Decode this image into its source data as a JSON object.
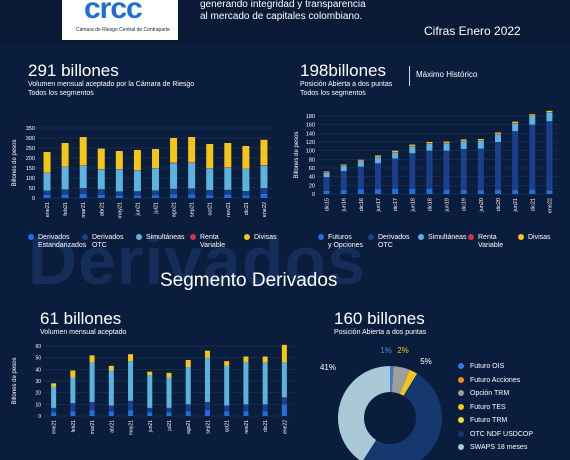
{
  "header": {
    "logo": "crcc",
    "logo_subtitle": "Cámara de Riesgo Central de Contraparte",
    "tagline_line1": "generando integridad y transparencia",
    "tagline_line2": "al mercado de capitales colombiano.",
    "period": "Cifras Enero 2022"
  },
  "colors": {
    "derivados_estandarizados": "#1f6fe0",
    "derivados_otc": "#1b3f8c",
    "simultaneas": "#5cb4dd",
    "renta_variable": "#d8304a",
    "divisas": "#f5c518",
    "futuros_opciones": "#1f6fe0",
    "pie_light": "#a9c8d8",
    "pie_dark": "#15386f"
  },
  "volumen": {
    "headline": "291 billones",
    "subtitle1": "Volumen mensual aceptado por la Cámara de Riesgo",
    "subtitle2": "Todos los segmentos",
    "legend": [
      "Derivados\nEstandarizados",
      "Derivados\nOTC",
      "Simultáneas",
      "Renta\nVariable",
      "Divisas"
    ]
  },
  "posicion": {
    "headline": "198billones",
    "subtitle1": "Posición Abierta a dos puntas",
    "subtitle2": "Todos los segmentos",
    "badge": "Máximo Histórico",
    "legend": [
      "Futuros\ny Opciones",
      "Derivados\nOTC",
      "Simultáneas",
      "Renta\nVariable",
      "Divisas"
    ]
  },
  "segmento": {
    "title": "Segmento Derivados",
    "watermark": "Derivados"
  },
  "deriv_volumen": {
    "headline": "61 billones",
    "subtitle": "Volumen mensual aceptado"
  },
  "deriv_posicion": {
    "headline": "160 billones",
    "subtitle": "Posición Abierta a dos puntas",
    "labels": [
      "1%",
      "2%",
      "5%",
      "41%"
    ],
    "legend": [
      "Futuro OIS",
      "Futuro Acciones",
      "Opción TRM",
      "Futuro TES",
      "Futuro TRM",
      "OTC NDF USDCOP",
      "SWAPS 18 meses"
    ],
    "legend_colors": [
      "#2f7de0",
      "#f58a1f",
      "#9e9e9e",
      "#f5c518",
      "#f5d83a",
      "#15386f",
      "#a9c8d8"
    ]
  },
  "chart_data": [
    {
      "type": "bar",
      "ylabel": "Billones de pesos",
      "ylim": [
        0,
        350
      ],
      "yticks": [
        0,
        50,
        100,
        150,
        200,
        250,
        300,
        350
      ],
      "categories": [
        "ene21",
        "feb21",
        "mar21",
        "abr21",
        "may21",
        "jun21",
        "jul21",
        "ago21",
        "sep21",
        "oct21",
        "nov21",
        "dic21",
        "ene22"
      ],
      "series": [
        {
          "name": "Derivados Estandarizados",
          "values": [
            15,
            17,
            20,
            16,
            13,
            12,
            14,
            18,
            18,
            14,
            17,
            13,
            20
          ]
        },
        {
          "name": "Derivados OTC",
          "values": [
            22,
            26,
            30,
            28,
            20,
            22,
            24,
            28,
            30,
            26,
            24,
            22,
            30
          ]
        },
        {
          "name": "Simultáneas",
          "values": [
            88,
            112,
            110,
            98,
            110,
            104,
            110,
            128,
            127,
            108,
            110,
            110,
            112
          ]
        },
        {
          "name": "Renta Variable",
          "values": [
            2,
            2,
            3,
            2,
            2,
            2,
            2,
            3,
            3,
            2,
            2,
            2,
            3
          ]
        },
        {
          "name": "Divisas",
          "values": [
            103,
            118,
            142,
            103,
            90,
            100,
            95,
            123,
            127,
            120,
            122,
            113,
            126
          ]
        }
      ]
    },
    {
      "type": "bar",
      "ylabel": "Billones de pesos",
      "ylim": [
        0,
        180
      ],
      "yticks": [
        0,
        20,
        40,
        60,
        80,
        100,
        120,
        140,
        160,
        180
      ],
      "categories": [
        "dic15",
        "jun16",
        "dic16",
        "jun17",
        "dic17",
        "jun18",
        "dic18",
        "jun19",
        "dic19",
        "jun20",
        "dic20",
        "jun21",
        "dic21",
        "ene22"
      ],
      "series": [
        {
          "name": "Futuros y Opciones",
          "values": [
            7,
            9,
            11,
            11,
            12,
            12,
            12,
            10,
            10,
            9,
            10,
            9,
            10,
            8
          ]
        },
        {
          "name": "Derivados OTC",
          "values": [
            32,
            44,
            52,
            60,
            70,
            82,
            88,
            90,
            94,
            96,
            110,
            136,
            150,
            160
          ]
        },
        {
          "name": "Simultáneas",
          "values": [
            10,
            12,
            13,
            14,
            14,
            16,
            16,
            17,
            18,
            18,
            18,
            18,
            20,
            20
          ]
        },
        {
          "name": "Renta Variable",
          "values": [
            1,
            1,
            1,
            1,
            1,
            1,
            1,
            1,
            1,
            1,
            1,
            1,
            1,
            1
          ]
        },
        {
          "name": "Divisas",
          "values": [
            2,
            2,
            2,
            3,
            3,
            3,
            3,
            3,
            3,
            3,
            3,
            3,
            3,
            3
          ]
        }
      ]
    },
    {
      "type": "bar",
      "ylabel": "Billones de pesos",
      "ylim": [
        0,
        60
      ],
      "yticks": [
        0,
        10,
        20,
        30,
        40,
        50,
        60
      ],
      "categories": [
        "ene21",
        "feb21",
        "mar21",
        "abr21",
        "may21",
        "jun21",
        "jul21",
        "ago21",
        "sep21",
        "oct21",
        "nov21",
        "dic21",
        "ene22"
      ],
      "series": [
        {
          "name": "Futuros y Opciones",
          "values": [
            3,
            4,
            5,
            4,
            5,
            3,
            3,
            4,
            5,
            4,
            4,
            4,
            10
          ]
        },
        {
          "name": "Derivados OTC",
          "values": [
            4,
            7,
            7,
            5,
            8,
            4,
            4,
            6,
            7,
            5,
            6,
            6,
            6
          ]
        },
        {
          "name": "Simultáneas",
          "values": [
            18,
            22,
            34,
            30,
            34,
            28,
            26,
            32,
            38,
            34,
            36,
            36,
            30
          ]
        },
        {
          "name": "Renta Variable",
          "values": [
            0,
            0,
            0,
            0,
            0,
            0,
            0,
            0,
            0,
            0,
            0,
            0,
            0
          ]
        },
        {
          "name": "Divisas",
          "values": [
            3,
            6,
            6,
            4,
            6,
            3,
            4,
            6,
            6,
            4,
            5,
            5,
            15
          ]
        }
      ]
    },
    {
      "type": "pie",
      "categories": [
        "Futuro OIS",
        "Futuro Acciones",
        "Opción TRM",
        "Futuro TES",
        "Futuro TRM",
        "OTC NDF USDCOP",
        "SWAPS 18 meses"
      ],
      "values": [
        1,
        0.2,
        5,
        2,
        0.5,
        50.3,
        41
      ]
    }
  ]
}
